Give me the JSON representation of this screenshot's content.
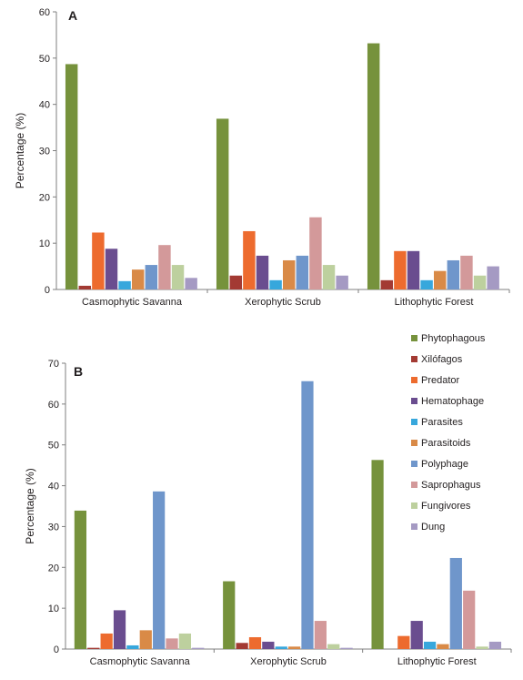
{
  "colors": [
    "#76923c",
    "#a33a33",
    "#ed6b2e",
    "#6a4d8f",
    "#37a7dc",
    "#d98a47",
    "#6f96cb",
    "#d3999a",
    "#bdd09e",
    "#a59ac3"
  ],
  "legend_position": "top-right",
  "chart_data": [
    {
      "type": "bar",
      "panel_label": "A",
      "ylabel": "Percentage (%)",
      "ylim": [
        0,
        60
      ],
      "yticks": [
        0,
        10,
        20,
        30,
        40,
        50,
        60
      ],
      "grid": false,
      "categories": [
        "Casmophytic Savanna",
        "Xerophytic Scrub",
        "Lithophytic Forest"
      ],
      "series": [
        {
          "name": "Phytophagous",
          "values": [
            48.7,
            36.9,
            53.2
          ]
        },
        {
          "name": "Xilófagos",
          "values": [
            0.8,
            3.0,
            2.0
          ]
        },
        {
          "name": "Predator",
          "values": [
            12.3,
            12.6,
            8.3
          ]
        },
        {
          "name": "Hematophage",
          "values": [
            8.8,
            7.3,
            8.3
          ]
        },
        {
          "name": "Parasites",
          "values": [
            1.8,
            2.0,
            2.0
          ]
        },
        {
          "name": "Parasitoids",
          "values": [
            4.3,
            6.3,
            4.0
          ]
        },
        {
          "name": "Polyphage",
          "values": [
            5.3,
            7.3,
            6.3
          ]
        },
        {
          "name": "Saprophagus",
          "values": [
            9.6,
            15.6,
            7.3
          ]
        },
        {
          "name": "Fungivores",
          "values": [
            5.3,
            5.3,
            3.0
          ]
        },
        {
          "name": "Dung",
          "values": [
            2.5,
            3.0,
            5.0
          ]
        }
      ]
    },
    {
      "type": "bar",
      "panel_label": "B",
      "ylabel": "Percentage (%)",
      "ylim": [
        0,
        70
      ],
      "yticks": [
        0,
        10,
        20,
        30,
        40,
        50,
        60,
        70
      ],
      "grid": false,
      "categories": [
        "Casmophytic Savanna",
        "Xerophytic Scrub",
        "Lithophytic Forest"
      ],
      "series": [
        {
          "name": "Phytophagous",
          "values": [
            33.9,
            16.6,
            46.3
          ]
        },
        {
          "name": "Xilófagos",
          "values": [
            0.3,
            1.5,
            0.0
          ]
        },
        {
          "name": "Predator",
          "values": [
            3.8,
            2.9,
            3.2
          ]
        },
        {
          "name": "Hematophage",
          "values": [
            9.5,
            1.8,
            6.9
          ]
        },
        {
          "name": "Parasites",
          "values": [
            0.9,
            0.6,
            1.8
          ]
        },
        {
          "name": "Parasitoids",
          "values": [
            4.6,
            0.6,
            1.2
          ]
        },
        {
          "name": "Polyphage",
          "values": [
            38.6,
            65.6,
            22.3
          ]
        },
        {
          "name": "Saprophagus",
          "values": [
            2.6,
            6.9,
            14.3
          ]
        },
        {
          "name": "Fungivores",
          "values": [
            3.8,
            1.2,
            0.6
          ]
        },
        {
          "name": "Dung",
          "values": [
            0.3,
            0.3,
            1.8
          ]
        }
      ]
    }
  ]
}
